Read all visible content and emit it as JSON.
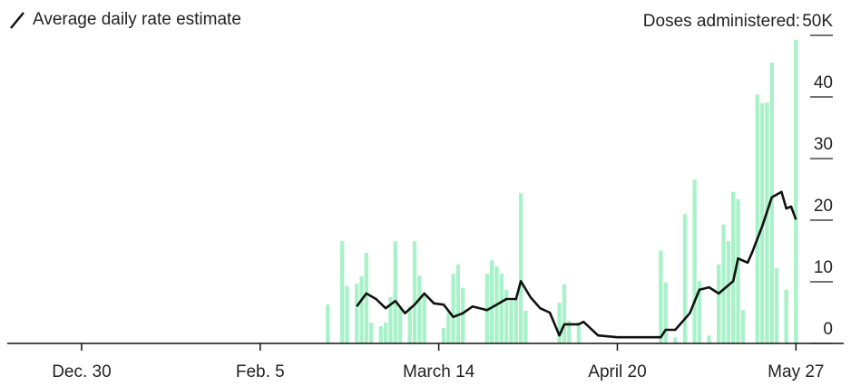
{
  "chart_data": {
    "type": "bar",
    "y_label": "Doses administered:",
    "xlim": [
      -15.4,
      157.9
    ],
    "xticks": [
      {
        "value": 0,
        "label": "Dec. 30"
      },
      {
        "value": 37,
        "label": "Feb. 5"
      },
      {
        "value": 74,
        "label": "March 14"
      },
      {
        "value": 111,
        "label": "April 20"
      },
      {
        "value": 148,
        "label": "May 27"
      }
    ],
    "ylim": [
      0,
      50
    ],
    "yticks": [
      0,
      10,
      20,
      30,
      40,
      {
        "value": 50,
        "label": "50K"
      }
    ],
    "bars": {
      "color": "#a9f2c9",
      "x": [
        51,
        54,
        55,
        57,
        58,
        59,
        60,
        62,
        63,
        64,
        65,
        66,
        68,
        69,
        70,
        71,
        75,
        76,
        77,
        78,
        79,
        84,
        85,
        86,
        87,
        88,
        89,
        90,
        91,
        92,
        99,
        100,
        101,
        103,
        120,
        121,
        123,
        125,
        127,
        128,
        130,
        132,
        133,
        134,
        135,
        136,
        137,
        140,
        141,
        142,
        143,
        144,
        146,
        148
      ],
      "values": [
        6.3,
        16.6,
        9.3,
        9.7,
        10.9,
        14.7,
        3.4,
        2.8,
        3.4,
        7.5,
        16.6,
        5.7,
        6,
        16.6,
        11,
        8,
        2.5,
        4.9,
        11.3,
        12.8,
        9,
        11.3,
        13.5,
        12.5,
        11.3,
        8.7,
        6.9,
        7.2,
        24.4,
        5.3,
        6.6,
        9.6,
        3.7,
        3.4,
        15.1,
        9.9,
        1,
        21,
        26.6,
        10.1,
        1.3,
        12.8,
        19.3,
        16.6,
        24.6,
        23.4,
        5.4,
        40.4,
        39,
        39.1,
        45.6,
        12.2,
        8.7,
        49.3
      ]
    },
    "line": {
      "name": "Average daily rate estimate",
      "color": "#111111",
      "x": [
        57,
        59,
        61,
        63,
        65,
        67,
        69,
        71,
        73,
        75,
        77,
        79,
        81,
        84,
        86,
        88,
        90,
        91,
        93,
        95,
        97,
        99,
        100,
        103,
        104,
        107,
        111,
        120,
        121,
        123,
        126,
        128,
        130,
        132,
        135,
        136,
        138,
        139,
        141,
        143,
        145,
        146,
        147,
        148
      ],
      "values": [
        6.0,
        8.1,
        7.2,
        5.7,
        6.9,
        4.9,
        6.3,
        8.1,
        6.5,
        6.3,
        4.3,
        4.9,
        6.0,
        5.4,
        6.3,
        7.2,
        7.2,
        10.1,
        7.5,
        5.7,
        5.0,
        1.3,
        3.1,
        3.1,
        3.5,
        1.3,
        1.0,
        1.0,
        2.2,
        2.2,
        4.9,
        8.7,
        9.1,
        8.1,
        10.1,
        13.8,
        13.1,
        14.9,
        19.0,
        23.7,
        24.6,
        21.9,
        22.2,
        20.1
      ]
    }
  }
}
